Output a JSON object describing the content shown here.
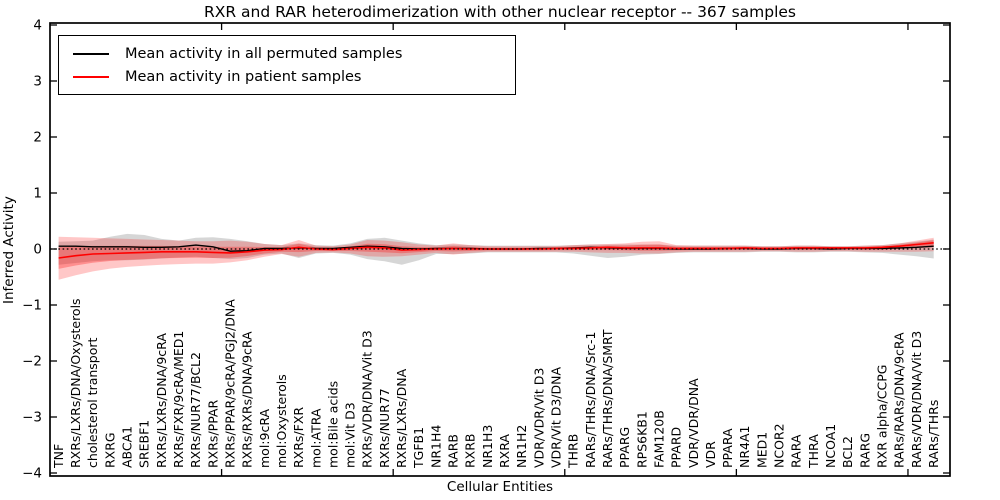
{
  "figure": {
    "title": "RXR and RAR heterodimerization with other nuclear receptor -- 367 samples",
    "xlabel": "Cellular Entities",
    "ylabel": "Inferred Activity",
    "background": "#ffffff"
  },
  "legend": {
    "entries": [
      {
        "label": "Mean activity in all permuted samples",
        "color": "#000000"
      },
      {
        "label": "Mean activity in patient samples",
        "color": "#ff0000"
      }
    ]
  },
  "chart_data": {
    "type": "line",
    "title": "RXR and RAR heterodimerization with other nuclear receptor -- 367 samples",
    "xlabel": "Cellular Entities",
    "ylabel": "Inferred Activity",
    "ylim": [
      -4,
      4
    ],
    "ytick_values": [
      4,
      3,
      2,
      1,
      0,
      -1,
      -2,
      -3,
      -4
    ],
    "ytick_labels": [
      "4",
      "3",
      "2",
      "1",
      "0",
      "−1",
      "−2",
      "−3",
      "−4"
    ],
    "xticks_numeric": [
      10,
      20,
      30,
      40,
      50
    ],
    "grid": false,
    "legend_position": "upper left",
    "zero_line": {
      "y": 0,
      "style": "dotted",
      "color": "#000000"
    },
    "categories": [
      "TNF",
      "RXRs/LXRs/DNA/Oxysterols",
      "cholesterol transport",
      "RXRG",
      "ABCA1",
      "SREBF1",
      "RXRs/LXRs/DNA/9cRA",
      "RXRs/FXR/9cRA/MED1",
      "RXRs/NUR77/BCL2",
      "RXRs/PPAR",
      "RXRs/PPAR/9cRA/PGJ2/DNA",
      "RXRs/RXRs/DNA/9cRA",
      "mol:9cRA",
      "mol:Oxysterols",
      "RXRs/FXR",
      "mol:ATRA",
      "mol:Bile acids",
      "mol:Vit D3",
      "RXRs/VDR/DNA/Vit D3",
      "RXRs/NUR77",
      "RXRs/LXRs/DNA",
      "TGFB1",
      "NR1H4",
      "RARB",
      "RXRB",
      "NR1H3",
      "RXRA",
      "NR1H2",
      "VDR/VDR/Vit D3",
      "VDR/Vit D3/DNA",
      "THRB",
      "RARs/THRs/DNA/Src-1",
      "RARs/THRs/DNA/SMRT",
      "PPARG",
      "RPS6KB1",
      "FAM120B",
      "PPARD",
      "VDR/VDR/DNA",
      "VDR",
      "PPARA",
      "NR4A1",
      "MED1",
      "NCOR2",
      "RARA",
      "THRA",
      "NCOA1",
      "BCL2",
      "RARG",
      "RXR alpha/CCPG",
      "RARs/RARs/DNA/9cRA",
      "RARs/VDR/DNA/Vit D3",
      "RARs/THRs"
    ],
    "series": [
      {
        "name": "Mean activity in all permuted samples",
        "color": "#000000",
        "values": [
          0.05,
          0.05,
          0.04,
          0.04,
          0.04,
          0.03,
          0.03,
          0.04,
          0.07,
          0.04,
          -0.04,
          -0.03,
          0.01,
          0.01,
          0.02,
          0.01,
          0.01,
          0.03,
          0.05,
          0.04,
          0.01,
          0.0,
          0.01,
          0.01,
          0.01,
          0.0,
          0.0,
          0.0,
          0.01,
          0.01,
          0.02,
          0.03,
          0.02,
          0.01,
          0.01,
          0.01,
          0.0,
          0.0,
          0.0,
          0.01,
          0.01,
          0.0,
          0.0,
          0.01,
          0.01,
          0.0,
          0.01,
          0.01,
          0.01,
          0.02,
          0.03,
          0.05
        ]
      },
      {
        "name": "Mean activity in patient samples",
        "color": "#ff0000",
        "values": [
          -0.16,
          -0.12,
          -0.09,
          -0.08,
          -0.07,
          -0.06,
          -0.05,
          -0.05,
          -0.05,
          -0.06,
          -0.07,
          -0.05,
          -0.02,
          -0.01,
          0.03,
          0.0,
          -0.01,
          0.01,
          0.03,
          0.02,
          -0.02,
          -0.01,
          0.0,
          0.01,
          0.0,
          0.0,
          0.0,
          0.0,
          0.0,
          0.01,
          0.01,
          0.02,
          0.03,
          0.02,
          0.02,
          0.02,
          0.01,
          0.01,
          0.01,
          0.01,
          0.02,
          0.01,
          0.01,
          0.02,
          0.02,
          0.02,
          0.02,
          0.02,
          0.03,
          0.05,
          0.08,
          0.11
        ]
      }
    ],
    "bands": [
      {
        "name": "permuted-range",
        "color": "#808080",
        "opacity": 0.32,
        "upper": [
          0.13,
          0.14,
          0.15,
          0.22,
          0.27,
          0.25,
          0.18,
          0.15,
          0.2,
          0.21,
          0.18,
          0.14,
          0.09,
          0.07,
          0.1,
          0.07,
          0.06,
          0.1,
          0.18,
          0.2,
          0.15,
          0.1,
          0.07,
          0.08,
          0.07,
          0.06,
          0.06,
          0.06,
          0.06,
          0.06,
          0.07,
          0.08,
          0.08,
          0.08,
          0.08,
          0.08,
          0.06,
          0.06,
          0.06,
          0.06,
          0.06,
          0.05,
          0.05,
          0.06,
          0.06,
          0.05,
          0.05,
          0.06,
          0.07,
          0.1,
          0.13,
          0.17
        ],
        "lower": [
          -0.28,
          -0.25,
          -0.22,
          -0.2,
          -0.2,
          -0.19,
          -0.17,
          -0.15,
          -0.14,
          -0.16,
          -0.18,
          -0.16,
          -0.1,
          -0.08,
          -0.16,
          -0.08,
          -0.07,
          -0.1,
          -0.18,
          -0.22,
          -0.28,
          -0.2,
          -0.09,
          -0.09,
          -0.08,
          -0.06,
          -0.06,
          -0.06,
          -0.06,
          -0.06,
          -0.08,
          -0.12,
          -0.16,
          -0.14,
          -0.1,
          -0.09,
          -0.07,
          -0.06,
          -0.06,
          -0.06,
          -0.06,
          -0.05,
          -0.05,
          -0.06,
          -0.06,
          -0.05,
          -0.05,
          -0.06,
          -0.07,
          -0.1,
          -0.13,
          -0.17
        ]
      },
      {
        "name": "patient-range-outer",
        "color": "#ff0000",
        "opacity": 0.22,
        "upper": [
          0.22,
          0.21,
          0.2,
          0.19,
          0.18,
          0.17,
          0.16,
          0.15,
          0.14,
          0.14,
          0.15,
          0.13,
          0.09,
          0.07,
          0.16,
          0.06,
          0.05,
          0.08,
          0.16,
          0.15,
          0.12,
          0.08,
          0.06,
          0.1,
          0.07,
          0.05,
          0.05,
          0.05,
          0.05,
          0.05,
          0.07,
          0.08,
          0.09,
          0.1,
          0.13,
          0.14,
          0.07,
          0.06,
          0.06,
          0.06,
          0.06,
          0.05,
          0.05,
          0.06,
          0.06,
          0.05,
          0.05,
          0.06,
          0.07,
          0.1,
          0.15,
          0.2
        ],
        "lower": [
          -0.55,
          -0.47,
          -0.4,
          -0.35,
          -0.32,
          -0.3,
          -0.28,
          -0.27,
          -0.26,
          -0.26,
          -0.24,
          -0.2,
          -0.14,
          -0.09,
          -0.14,
          -0.07,
          -0.06,
          -0.08,
          -0.13,
          -0.14,
          -0.13,
          -0.1,
          -0.07,
          -0.1,
          -0.07,
          -0.05,
          -0.05,
          -0.05,
          -0.05,
          -0.05,
          -0.05,
          -0.06,
          -0.07,
          -0.07,
          -0.08,
          -0.08,
          -0.06,
          -0.05,
          -0.05,
          -0.05,
          -0.05,
          -0.04,
          -0.04,
          -0.05,
          -0.05,
          -0.04,
          -0.04,
          -0.05,
          -0.05,
          -0.05,
          -0.05,
          -0.04
        ]
      },
      {
        "name": "patient-range-inner",
        "color": "#ff0000",
        "opacity": 0.28,
        "of": "patient-range-outer",
        "series": "Mean activity in patient samples",
        "fraction": 0.5
      }
    ]
  }
}
